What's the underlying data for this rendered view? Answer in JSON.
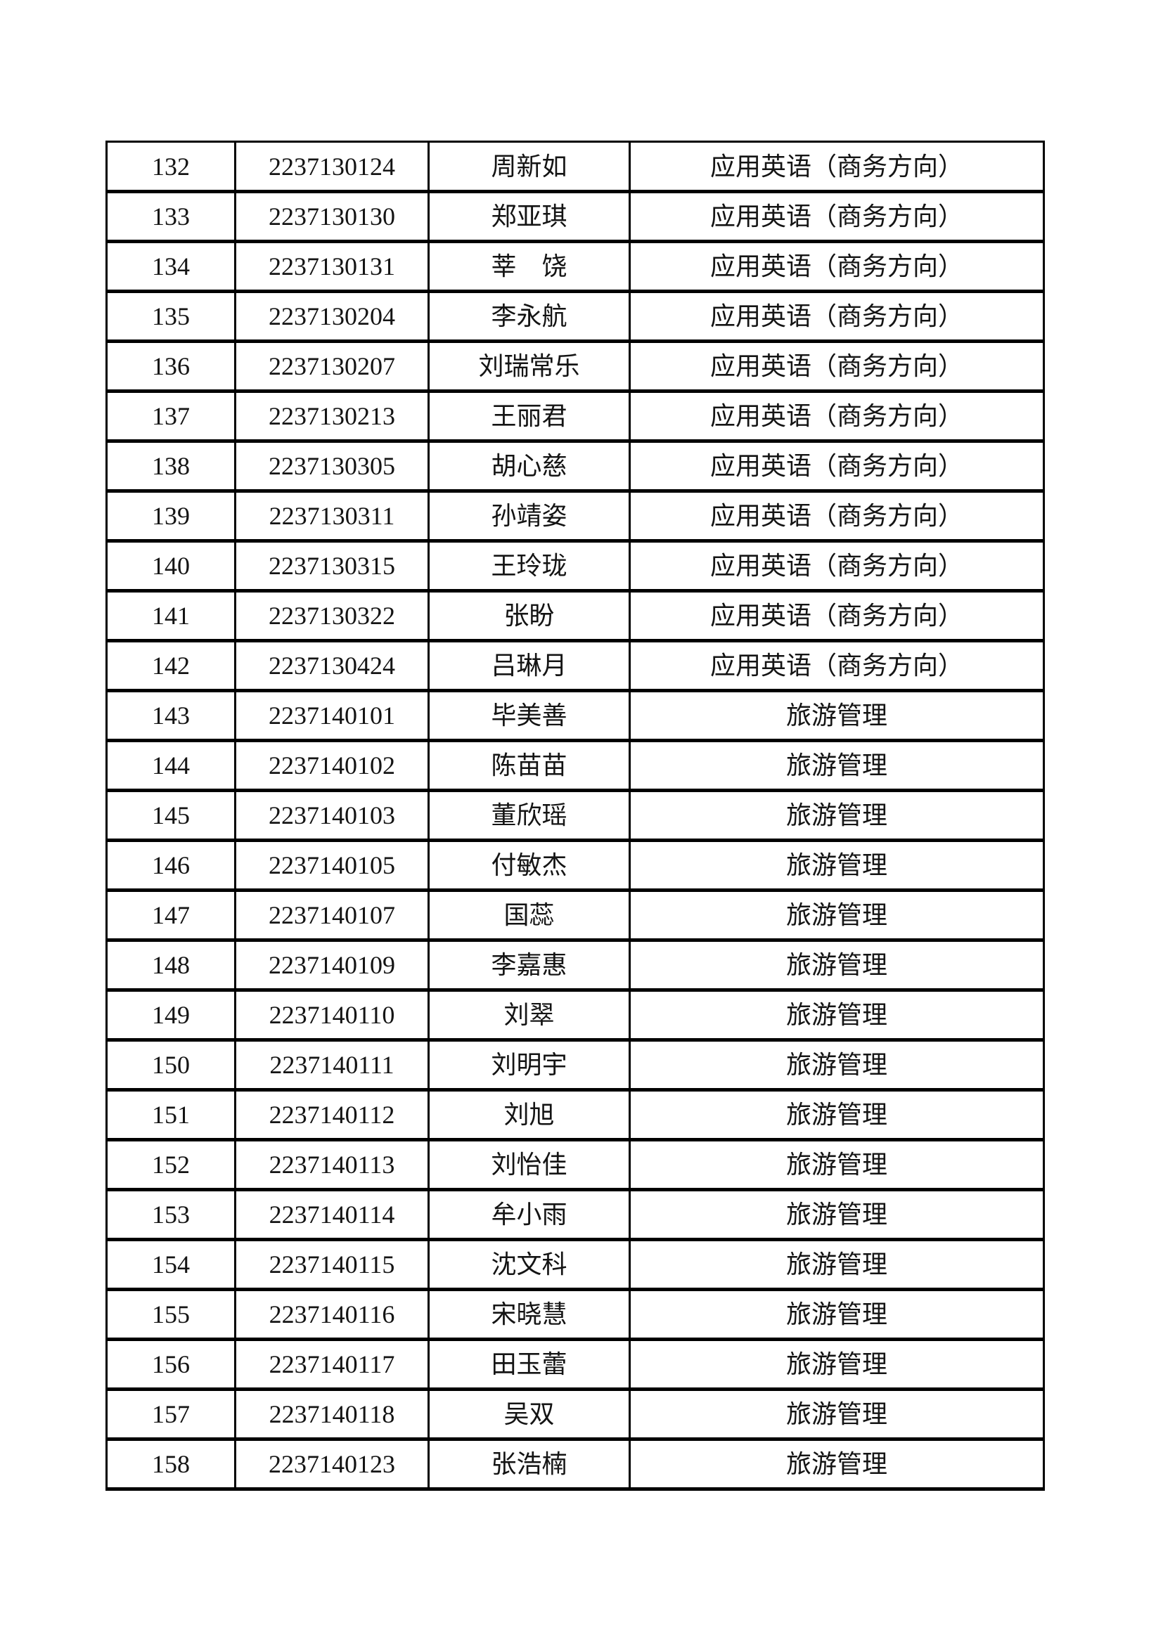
{
  "table": {
    "rows": [
      {
        "no": "132",
        "exam_id": "2237130124",
        "name": "周新如",
        "major": "应用英语（商务方向）"
      },
      {
        "no": "133",
        "exam_id": "2237130130",
        "name": "郑亚琪",
        "major": "应用英语（商务方向）"
      },
      {
        "no": "134",
        "exam_id": "2237130131",
        "name": "莘　饶",
        "major": "应用英语（商务方向）"
      },
      {
        "no": "135",
        "exam_id": "2237130204",
        "name": "李永航",
        "major": "应用英语（商务方向）"
      },
      {
        "no": "136",
        "exam_id": "2237130207",
        "name": "刘瑞常乐",
        "major": "应用英语（商务方向）"
      },
      {
        "no": "137",
        "exam_id": "2237130213",
        "name": "王丽君",
        "major": "应用英语（商务方向）"
      },
      {
        "no": "138",
        "exam_id": "2237130305",
        "name": "胡心慈",
        "major": "应用英语（商务方向）"
      },
      {
        "no": "139",
        "exam_id": "2237130311",
        "name": "孙靖姿",
        "major": "应用英语（商务方向）"
      },
      {
        "no": "140",
        "exam_id": "2237130315",
        "name": "王玲珑",
        "major": "应用英语（商务方向）"
      },
      {
        "no": "141",
        "exam_id": "2237130322",
        "name": "张盼",
        "major": "应用英语（商务方向）"
      },
      {
        "no": "142",
        "exam_id": "2237130424",
        "name": "吕琳月",
        "major": "应用英语（商务方向）"
      },
      {
        "no": "143",
        "exam_id": "2237140101",
        "name": "毕美善",
        "major": "旅游管理"
      },
      {
        "no": "144",
        "exam_id": "2237140102",
        "name": "陈苗苗",
        "major": "旅游管理"
      },
      {
        "no": "145",
        "exam_id": "2237140103",
        "name": "董欣瑶",
        "major": "旅游管理"
      },
      {
        "no": "146",
        "exam_id": "2237140105",
        "name": "付敏杰",
        "major": "旅游管理"
      },
      {
        "no": "147",
        "exam_id": "2237140107",
        "name": "国蕊",
        "major": "旅游管理"
      },
      {
        "no": "148",
        "exam_id": "2237140109",
        "name": "李嘉惠",
        "major": "旅游管理"
      },
      {
        "no": "149",
        "exam_id": "2237140110",
        "name": "刘翠",
        "major": "旅游管理"
      },
      {
        "no": "150",
        "exam_id": "2237140111",
        "name": "刘明宇",
        "major": "旅游管理"
      },
      {
        "no": "151",
        "exam_id": "2237140112",
        "name": "刘旭",
        "major": "旅游管理"
      },
      {
        "no": "152",
        "exam_id": "2237140113",
        "name": "刘怡佳",
        "major": "旅游管理"
      },
      {
        "no": "153",
        "exam_id": "2237140114",
        "name": "牟小雨",
        "major": "旅游管理"
      },
      {
        "no": "154",
        "exam_id": "2237140115",
        "name": "沈文科",
        "major": "旅游管理"
      },
      {
        "no": "155",
        "exam_id": "2237140116",
        "name": "宋晓慧",
        "major": "旅游管理"
      },
      {
        "no": "156",
        "exam_id": "2237140117",
        "name": "田玉蕾",
        "major": "旅游管理"
      },
      {
        "no": "157",
        "exam_id": "2237140118",
        "name": "吴双",
        "major": "旅游管理"
      },
      {
        "no": "158",
        "exam_id": "2237140123",
        "name": "张浩楠",
        "major": "旅游管理"
      }
    ]
  }
}
